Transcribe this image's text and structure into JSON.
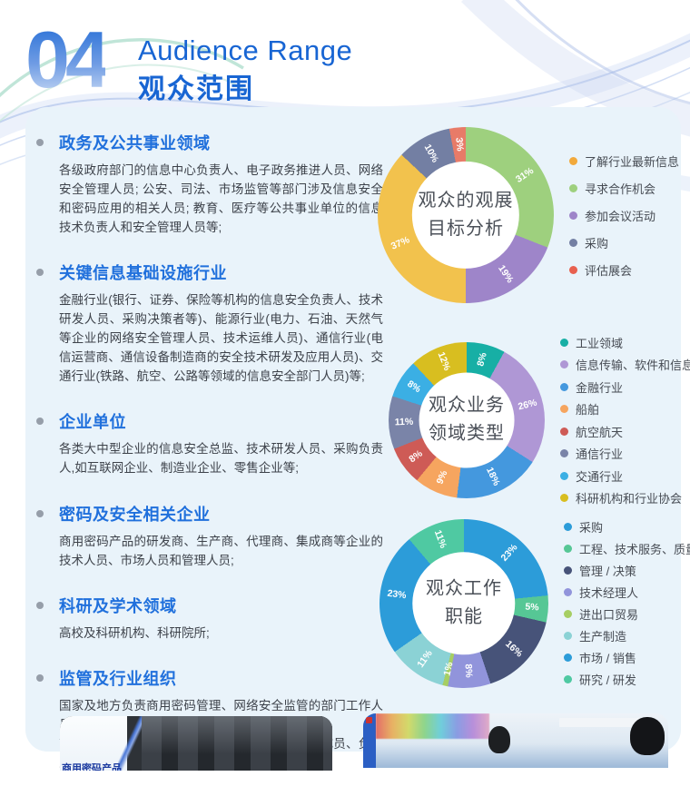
{
  "header": {
    "number": "04",
    "title_en": "Audience Range",
    "title_zh": "观众范围"
  },
  "sections": [
    {
      "heading": "政务及公共事业领域",
      "body": "各级政府部门的信息中心负责人、电子政务推进人员、网络安全管理人员; 公安、司法、市场监管等部门涉及信息安全和密码应用的相关人员; 教育、医疗等公共事业单位的信息技术负责人和安全管理人员等;"
    },
    {
      "heading": "关键信息基础设施行业",
      "body": "金融行业(银行、证券、保险等机构的信息安全负责人、技术研发人员、采购决策者等)、能源行业(电力、石油、天然气等企业的网络安全管理人员、技术运维人员)、通信行业(电信运营商、通信设备制造商的安全技术研发及应用人员)、交通行业(铁路、航空、公路等领域的信息安全部门人员)等;"
    },
    {
      "heading": "企业单位",
      "body": "各类大中型企业的信息安全总监、技术研发人员、采购负责人,如互联网企业、制造业企业、零售企业等;"
    },
    {
      "heading": "密码及安全相关企业",
      "body": "商用密码产品的研发商、生产商、代理商、集成商等企业的技术人员、市场人员和管理人员;"
    },
    {
      "heading": "科研及学术领域",
      "body": "高校及科研机构、科研院所;"
    },
    {
      "heading": "监管及行业组织",
      "body": "国家及地方负责商用密码管理、网络安全监管的部门工作人员;\n商用密码相关的行业协会、学会、联盟等组织的成员、负责人、专家学者等;"
    }
  ],
  "chart_data": [
    {
      "type": "pie",
      "subtype": "donut",
      "center_title": "观众的观展\n目标分析",
      "legend_position": "right",
      "segments": [
        {
          "label": "寻求合作机会",
          "value": 31,
          "pct": "31%",
          "color": "#9ED07E"
        },
        {
          "label": "参加会议活动",
          "value": 19,
          "pct": "19%",
          "color": "#9E85C9"
        },
        {
          "label": "了解行业最新信息",
          "value": 37,
          "pct": "37%",
          "color": "#F2C24D"
        },
        {
          "label": "采购",
          "value": 10,
          "pct": "10%",
          "color": "#737FA3"
        },
        {
          "label": "评估展会",
          "value": 3,
          "pct": "3%",
          "color": "#E87B68"
        }
      ],
      "legend": [
        {
          "label": "了解行业最新信息",
          "color": "#F2A93B"
        },
        {
          "label": "寻求合作机会",
          "color": "#9ED07E"
        },
        {
          "label": "参加会议活动",
          "color": "#9E85C9"
        },
        {
          "label": "采购",
          "color": "#737FA3"
        },
        {
          "label": "评估展会",
          "color": "#E8604F"
        }
      ]
    },
    {
      "type": "pie",
      "subtype": "donut",
      "center_title": "观众业务\n领域类型",
      "legend_position": "right",
      "segments": [
        {
          "label": "工业领域",
          "value": 8,
          "pct": "8%",
          "color": "#17AFA5"
        },
        {
          "label": "信息传输、软件和信息技术",
          "value": 26,
          "pct": "26%",
          "color": "#AF97D5"
        },
        {
          "label": "金融行业",
          "value": 18,
          "pct": "18%",
          "color": "#4498DE"
        },
        {
          "label": "船舶",
          "value": 9,
          "pct": "9%",
          "color": "#F6A55F"
        },
        {
          "label": "航空航天",
          "value": 8,
          "pct": "8%",
          "color": "#CE5B56"
        },
        {
          "label": "通信行业",
          "value": 11,
          "pct": "11%",
          "color": "#7A84A8"
        },
        {
          "label": "交通行业",
          "value": 8,
          "pct": "8%",
          "color": "#3BAFE4"
        },
        {
          "label": "科研机构和行业协会",
          "value": 12,
          "pct": "12%",
          "color": "#D8BE20"
        }
      ]
    },
    {
      "type": "pie",
      "subtype": "donut",
      "center_title": "观众工作\n职能",
      "legend_position": "right",
      "segments": [
        {
          "label": "采购",
          "value": 23,
          "pct": "23%",
          "color": "#2C9CD9"
        },
        {
          "label": "工程、技术服务、质量管理",
          "value": 5,
          "pct": "5%",
          "color": "#56C795"
        },
        {
          "label": "管理 / 决策",
          "value": 16,
          "pct": "16%",
          "color": "#475379"
        },
        {
          "label": "技术经理人",
          "value": 8,
          "pct": "8%",
          "color": "#9194DB"
        },
        {
          "label": "进出口贸易",
          "value": 1,
          "pct": "1%",
          "color": "#A6CE63"
        },
        {
          "label": "生产制造",
          "value": 11,
          "pct": "11%",
          "color": "#8BD2D5"
        },
        {
          "label": "市场 / 销售",
          "value": 23,
          "pct": "23%",
          "color": "#2C9CD9"
        },
        {
          "label": "研究 / 研发",
          "value": 11,
          "pct": "11%",
          "color": "#4FC9A2"
        }
      ]
    }
  ],
  "footer": {
    "photo_caption": "商用密码产品"
  }
}
